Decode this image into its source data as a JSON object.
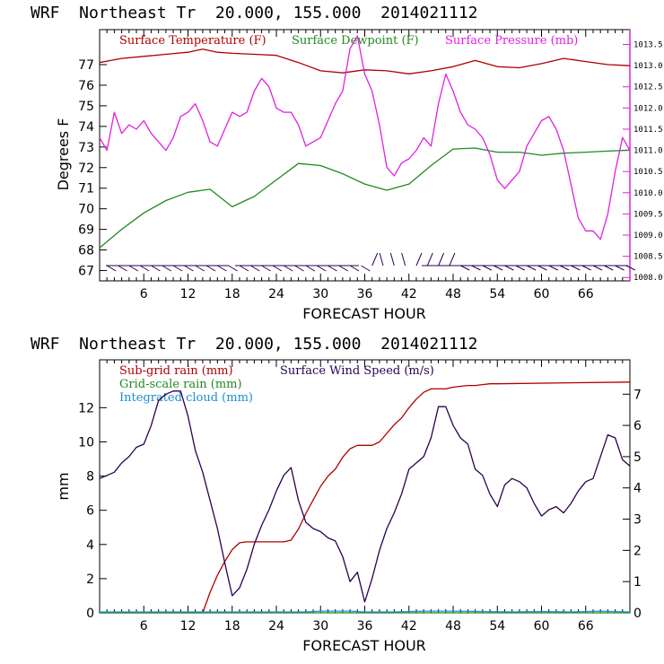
{
  "charts": [
    {
      "header": "WRF  Northeast Tr  20.000, 155.000  2014021112",
      "xlabel": "FORECAST HOUR",
      "ylabel": "Degrees F",
      "xticks": [
        "6",
        "12",
        "18",
        "24",
        "30",
        "36",
        "42",
        "48",
        "54",
        "60",
        "66"
      ],
      "yticks": [
        "67",
        "68",
        "69",
        "70",
        "71",
        "72",
        "73",
        "74",
        "75",
        "76",
        "77"
      ],
      "rticks": [
        "1008.0",
        "1008.5",
        "1009.0",
        "1009.5",
        "1010.0",
        "1010.5",
        "1011.0",
        "1011.5",
        "1012.0",
        "1012.5",
        "1013.0",
        "1013.5"
      ],
      "legend": [
        {
          "label": "Surface Temperature (F)",
          "color": "#b00000"
        },
        {
          "label": "Surface Dewpoint (F)",
          "color": "#1f8a1f"
        },
        {
          "label": "Surface Pressure (mb)",
          "color": "#e020e0"
        }
      ]
    },
    {
      "header": "WRF  Northeast Tr  20.000, 155.000  2014021112",
      "xlabel": "FORECAST HOUR",
      "ylabel": "mm",
      "xticks": [
        "6",
        "12",
        "18",
        "24",
        "30",
        "36",
        "42",
        "48",
        "54",
        "60",
        "66"
      ],
      "yticks": [
        "0",
        "2",
        "4",
        "6",
        "8",
        "10",
        "12"
      ],
      "rticks": [
        "0",
        "1",
        "2",
        "3",
        "4",
        "5",
        "6",
        "7"
      ],
      "legend": [
        {
          "label": "Sub-grid rain (mm)",
          "color": "#b00000"
        },
        {
          "label": "Grid-scale rain (mm)",
          "color": "#1f8a1f"
        },
        {
          "label": "Integrated cloud (mm)",
          "color": "#1a8fd0"
        },
        {
          "label": "Surface Wind Speed (m/s)",
          "color": "#2a0050"
        }
      ]
    }
  ],
  "chart_data": [
    {
      "type": "line",
      "title": "WRF  Northeast Tr  20.000, 155.000  2014021112",
      "xlabel": "FORECAST HOUR",
      "ylabel": "Degrees F",
      "xlim": [
        0,
        72
      ],
      "ylim": [
        66.5,
        78.7
      ],
      "y2lim": [
        1007.92,
        1013.85
      ],
      "grid": false,
      "legend": "top",
      "series": [
        {
          "name": "Surface Temperature (F)",
          "axis": "left",
          "color": "#b00000",
          "x": [
            0,
            3,
            6,
            9,
            12,
            14,
            16,
            18,
            21,
            24,
            27,
            30,
            33,
            36,
            39,
            42,
            45,
            48,
            51,
            54,
            57,
            60,
            63,
            66,
            69,
            72
          ],
          "y": [
            77.1,
            77.3,
            77.4,
            77.5,
            77.6,
            77.75,
            77.6,
            77.55,
            77.5,
            77.45,
            77.1,
            76.7,
            76.6,
            76.75,
            76.7,
            76.55,
            76.7,
            76.9,
            77.2,
            76.9,
            76.85,
            77.05,
            77.3,
            77.15,
            77.0,
            76.95
          ]
        },
        {
          "name": "Surface Dewpoint (F)",
          "axis": "left",
          "color": "#1f8a1f",
          "x": [
            0,
            3,
            6,
            9,
            12,
            15,
            18,
            21,
            24,
            27,
            30,
            33,
            36,
            39,
            42,
            45,
            48,
            51,
            54,
            57,
            60,
            63,
            66,
            69,
            72
          ],
          "y": [
            68.1,
            69.0,
            69.8,
            70.4,
            70.8,
            70.95,
            70.1,
            70.6,
            71.4,
            72.2,
            72.1,
            71.7,
            71.2,
            70.9,
            71.2,
            72.1,
            72.9,
            72.95,
            72.75,
            72.75,
            72.6,
            72.7,
            72.75,
            72.8,
            72.85
          ]
        },
        {
          "name": "Surface Pressure (mb)",
          "axis": "right",
          "color": "#e020e0",
          "x": [
            0,
            1,
            2,
            3,
            4,
            5,
            6,
            7,
            8,
            9,
            10,
            11,
            12,
            13,
            14,
            15,
            16,
            17,
            18,
            19,
            20,
            21,
            22,
            23,
            24,
            25,
            26,
            27,
            28,
            29,
            30,
            31,
            32,
            33,
            34,
            35,
            36,
            37,
            38,
            39,
            40,
            41,
            42,
            43,
            44,
            45,
            46,
            47,
            48,
            49,
            50,
            51,
            52,
            53,
            54,
            55,
            56,
            57,
            58,
            59,
            60,
            61,
            62,
            63,
            64,
            65,
            66,
            67,
            68,
            69,
            70,
            71,
            72
          ],
          "y": [
            1011.3,
            1011.0,
            1011.9,
            1011.4,
            1011.6,
            1011.5,
            1011.7,
            1011.4,
            1011.2,
            1011.0,
            1011.3,
            1011.8,
            1011.9,
            1012.1,
            1011.7,
            1011.2,
            1011.1,
            1011.5,
            1011.9,
            1011.8,
            1011.9,
            1012.4,
            1012.7,
            1012.5,
            1012.0,
            1011.9,
            1011.9,
            1011.6,
            1011.1,
            1011.2,
            1011.3,
            1011.7,
            1012.1,
            1012.4,
            1013.4,
            1013.7,
            1012.8,
            1012.4,
            1011.6,
            1010.6,
            1010.4,
            1010.7,
            1010.8,
            1011.0,
            1011.3,
            1011.1,
            1012.1,
            1012.8,
            1012.4,
            1011.9,
            1011.6,
            1011.5,
            1011.3,
            1010.9,
            1010.3,
            1010.1,
            1010.3,
            1010.5,
            1011.1,
            1011.4,
            1011.7,
            1011.8,
            1011.5,
            1011.0,
            1010.2,
            1009.4,
            1009.1,
            1009.1,
            1008.9,
            1009.5,
            1010.5,
            1011.3,
            1011.0
          ]
        }
      ]
    },
    {
      "type": "line",
      "title": "WRF  Northeast Tr  20.000, 155.000  2014021112",
      "xlabel": "FORECAST HOUR",
      "ylabel": "mm",
      "xlim": [
        0,
        72
      ],
      "ylim": [
        0,
        14.8
      ],
      "y2lim": [
        0,
        8.1
      ],
      "grid": false,
      "legend": "top",
      "series": [
        {
          "name": "Sub-grid rain (mm)",
          "axis": "left",
          "color": "#b00000",
          "x": [
            0,
            14,
            15,
            16,
            17,
            18,
            19,
            20,
            21,
            22,
            23,
            24,
            25,
            26,
            27,
            28,
            29,
            30,
            31,
            32,
            33,
            34,
            35,
            36,
            37,
            38,
            39,
            40,
            41,
            42,
            43,
            44,
            45,
            46,
            47,
            48,
            49,
            50,
            51,
            52,
            53,
            54,
            72
          ],
          "y": [
            0,
            0,
            1.2,
            2.2,
            3.0,
            3.7,
            4.1,
            4.15,
            4.15,
            4.15,
            4.15,
            4.15,
            4.15,
            4.25,
            4.9,
            5.8,
            6.6,
            7.4,
            8.0,
            8.4,
            9.1,
            9.6,
            9.8,
            9.8,
            9.8,
            10.0,
            10.5,
            11.0,
            11.4,
            12.0,
            12.5,
            12.9,
            13.1,
            13.1,
            13.1,
            13.2,
            13.25,
            13.3,
            13.3,
            13.35,
            13.4,
            13.4,
            13.5
          ]
        },
        {
          "name": "Grid-scale rain (mm)",
          "axis": "left",
          "color": "#1f8a1f",
          "x": [
            0,
            72
          ],
          "y": [
            0,
            0
          ]
        },
        {
          "name": "Integrated cloud (mm)",
          "axis": "left",
          "color": "#1a8fd0",
          "x": [
            0,
            28,
            30,
            34,
            36,
            40,
            44,
            48,
            52,
            56,
            60,
            64,
            68,
            72
          ],
          "y": [
            0.05,
            0.05,
            0.1,
            0.1,
            0.05,
            0.05,
            0.1,
            0.1,
            0.08,
            0.05,
            0.08,
            0.05,
            0.1,
            0.05
          ]
        },
        {
          "name": "Surface Wind Speed (m/s)",
          "axis": "right",
          "color": "#2a0050",
          "x": [
            0,
            1,
            2,
            3,
            4,
            5,
            6,
            7,
            8,
            9,
            10,
            11,
            12,
            13,
            14,
            15,
            16,
            17,
            18,
            19,
            20,
            21,
            22,
            23,
            24,
            25,
            26,
            27,
            28,
            29,
            30,
            31,
            32,
            33,
            34,
            35,
            36,
            37,
            38,
            39,
            40,
            41,
            42,
            43,
            44,
            45,
            46,
            47,
            48,
            49,
            50,
            51,
            52,
            53,
            54,
            55,
            56,
            57,
            58,
            59,
            60,
            61,
            62,
            63,
            64,
            65,
            66,
            67,
            68,
            69,
            70,
            71,
            72
          ],
          "y": [
            4.3,
            4.4,
            4.5,
            4.8,
            5.0,
            5.3,
            5.4,
            6.0,
            6.8,
            7.0,
            7.1,
            7.1,
            6.3,
            5.2,
            4.5,
            3.6,
            2.7,
            1.6,
            0.55,
            0.8,
            1.4,
            2.2,
            2.8,
            3.3,
            3.9,
            4.4,
            4.65,
            3.6,
            2.9,
            2.7,
            2.6,
            2.4,
            2.3,
            1.8,
            1.0,
            1.3,
            0.35,
            1.1,
            2.0,
            2.7,
            3.2,
            3.8,
            4.6,
            4.8,
            5.0,
            5.6,
            6.6,
            6.6,
            6.0,
            5.6,
            5.4,
            4.6,
            4.4,
            3.8,
            3.4,
            4.1,
            4.3,
            4.2,
            4.0,
            3.5,
            3.1,
            3.3,
            3.4,
            3.2,
            3.5,
            3.9,
            4.2,
            4.3,
            5.0,
            5.7,
            5.6,
            4.9,
            4.7
          ]
        }
      ]
    }
  ]
}
